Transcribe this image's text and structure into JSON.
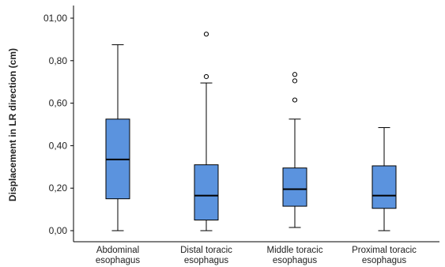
{
  "chart_data": {
    "type": "boxplot",
    "ylabel": "Displacement in LR direction (cm)",
    "xlabel": "",
    "ylim": [
      0,
      1.0
    ],
    "yticks": [
      {
        "value": 0.0,
        "label": "0,00"
      },
      {
        "value": 0.2,
        "label": "0,20"
      },
      {
        "value": 0.4,
        "label": "0,40"
      },
      {
        "value": 0.6,
        "label": "0,60"
      },
      {
        "value": 0.8,
        "label": "0,80"
      },
      {
        "value": 1.0,
        "label": "01,00"
      }
    ],
    "grid": false,
    "legend": "none",
    "box_color": "#5b93de",
    "categories": [
      {
        "label_lines": [
          "Abdominal",
          "esophagus"
        ],
        "min": 0.0,
        "q1": 0.15,
        "median": 0.335,
        "q3": 0.525,
        "max": 0.875,
        "outliers": []
      },
      {
        "label_lines": [
          "Distal toracic",
          "esophagus"
        ],
        "min": 0.0,
        "q1": 0.05,
        "median": 0.165,
        "q3": 0.31,
        "max": 0.695,
        "outliers": [
          0.725,
          0.925
        ]
      },
      {
        "label_lines": [
          "Middle toracic",
          "esophagus"
        ],
        "min": 0.015,
        "q1": 0.115,
        "median": 0.195,
        "q3": 0.295,
        "max": 0.525,
        "outliers": [
          0.615,
          0.705,
          0.735
        ]
      },
      {
        "label_lines": [
          "Proximal toracic",
          "esophagus"
        ],
        "min": 0.0,
        "q1": 0.105,
        "median": 0.165,
        "q3": 0.305,
        "max": 0.485,
        "outliers": []
      }
    ]
  }
}
